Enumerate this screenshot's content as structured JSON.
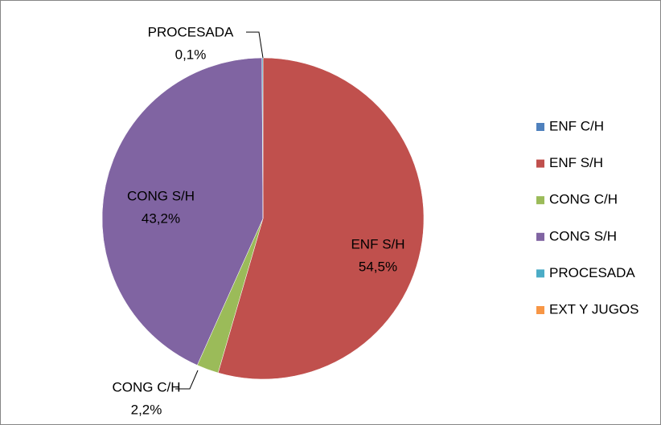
{
  "chart_data": {
    "type": "pie",
    "categories": [
      "ENF C/H",
      "ENF S/H",
      "CONG C/H",
      "CONG S/H",
      "PROCESADA",
      "EXT Y JUGOS"
    ],
    "values": [
      0,
      54.5,
      2.2,
      43.2,
      0.1,
      0
    ],
    "value_labels": [
      null,
      "54,5%",
      "2,2%",
      "43,2%",
      "0,1%",
      null
    ],
    "colors": [
      "#4F81BD",
      "#C0504D",
      "#9BBB59",
      "#8064A2",
      "#4BACC6",
      "#F79646"
    ],
    "legend": "right"
  }
}
